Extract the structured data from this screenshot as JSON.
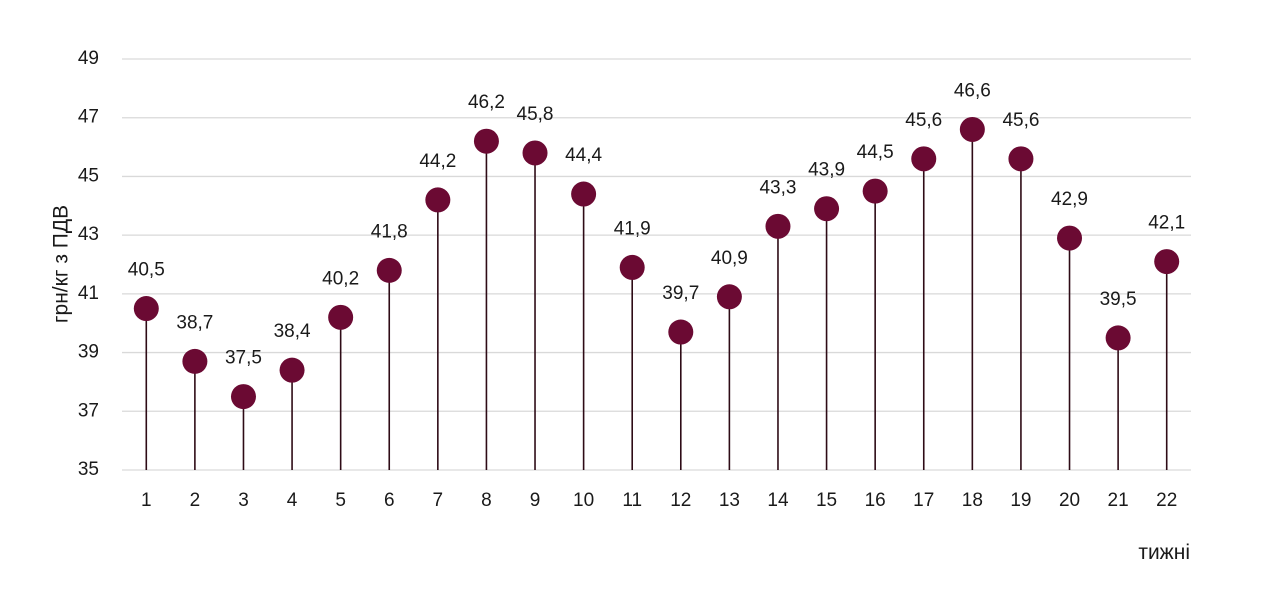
{
  "chart_data": {
    "type": "lollipop",
    "xlabel": "тижні",
    "ylabel": "грн/кг з ПДВ",
    "ylim": [
      35,
      49
    ],
    "yticks": [
      35,
      37,
      39,
      41,
      43,
      45,
      47,
      49
    ],
    "ytick_labels": [
      "35",
      "37",
      "39",
      "41",
      "43",
      "45",
      "47",
      "49"
    ],
    "categories": [
      "1",
      "2",
      "3",
      "4",
      "5",
      "6",
      "7",
      "8",
      "9",
      "10",
      "11",
      "12",
      "13",
      "14",
      "15",
      "16",
      "17",
      "18",
      "19",
      "20",
      "21",
      "22"
    ],
    "values": [
      40.5,
      38.7,
      37.5,
      38.4,
      40.2,
      41.8,
      44.2,
      46.2,
      45.8,
      44.4,
      41.9,
      39.7,
      40.9,
      43.3,
      43.9,
      44.5,
      45.6,
      46.6,
      45.6,
      42.9,
      39.5,
      42.1
    ],
    "value_labels": [
      "40,5",
      "38,7",
      "37,5",
      "38,4",
      "40,2",
      "41,8",
      "44,2",
      "46,2",
      "45,8",
      "44,4",
      "41,9",
      "39,7",
      "40,9",
      "43,3",
      "43,9",
      "44,5",
      "45,6",
      "46,6",
      "45,6",
      "42,9",
      "39,5",
      "42,1"
    ],
    "grid": true,
    "legend": "none",
    "marker_color": "#6b0a33",
    "stem_color": "#2e0b16",
    "grid_color": "#d9d9d9"
  }
}
